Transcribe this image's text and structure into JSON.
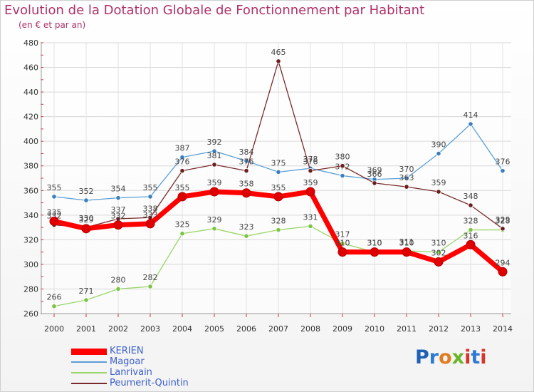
{
  "header": {
    "title": "Evolution de la Dotation Globale de Fonctionnement par Habitant",
    "subtitle": "(en € et par an)"
  },
  "logo": {
    "text": "Proxiti",
    "colors": [
      "#1f5fb5",
      "#2a7ad6",
      "#e07d1f",
      "#6bb52b",
      "#d9352a",
      "#2a7ad6",
      "#d9352a"
    ]
  },
  "chart_data": {
    "type": "line",
    "title": "Evolution de la Dotation Globale de Fonctionnement par Habitant",
    "subtitle": "(en € et par an)",
    "x": [
      2000,
      2001,
      2002,
      2003,
      2004,
      2005,
      2006,
      2007,
      2008,
      2009,
      2010,
      2011,
      2012,
      2013,
      2014
    ],
    "ylim": [
      260,
      480
    ],
    "yticks": [
      260,
      280,
      300,
      320,
      340,
      360,
      380,
      400,
      420,
      440,
      460,
      480
    ],
    "grid": true,
    "legend_position": "bottom-left",
    "series": [
      {
        "name": "Magoar",
        "color": "#5b9fd6",
        "marker_color": "#3a7fc0",
        "values": [
          355,
          352,
          354,
          355,
          387,
          392,
          384,
          375,
          378,
          372,
          369,
          370,
          390,
          414,
          376
        ]
      },
      {
        "name": "Lanrivain",
        "color": "#9ad66a",
        "marker_color": "#7cc444",
        "values": [
          266,
          271,
          280,
          282,
          325,
          329,
          323,
          328,
          331,
          317,
          310,
          311,
          310,
          328,
          328
        ]
      },
      {
        "name": "Peumerit-Quintin",
        "color": "#7a2a2a",
        "marker_color": "#6a1e1e",
        "values": [
          332,
          330,
          337,
          338,
          376,
          381,
          376,
          465,
          376,
          380,
          366,
          363,
          359,
          348,
          329
        ]
      },
      {
        "name": "KERIEN",
        "color": "#ff0000",
        "marker_color": "#e00000",
        "values": [
          335,
          329,
          332,
          333,
          355,
          359,
          358,
          355,
          359,
          310,
          310,
          310,
          302,
          316,
          294
        ]
      }
    ]
  }
}
